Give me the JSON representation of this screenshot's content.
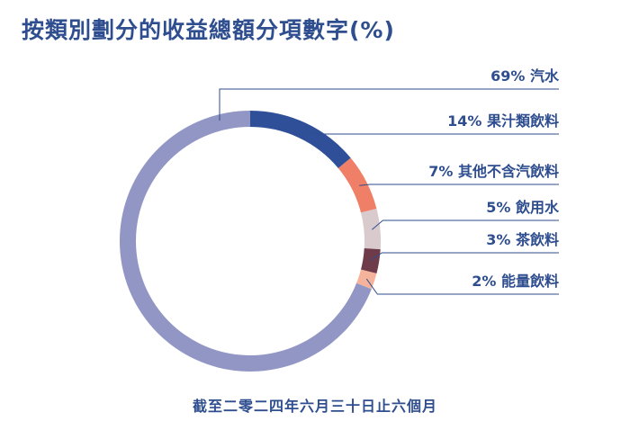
{
  "header": {
    "title": "按類別劃分的收益總額分項數字(%)"
  },
  "footer": {
    "period": "截至二零二四年六月三十日止六個月"
  },
  "chart_data": {
    "type": "pie",
    "donut": true,
    "title": "按類別劃分的收益總額分項數字(%)",
    "subtitle": "截至二零二四年六月三十日止六個月",
    "slices": [
      {
        "label": "汽水",
        "value": 69,
        "value_text": "69%",
        "color": "#9196c5"
      },
      {
        "label": "果汁類飲料",
        "value": 14,
        "value_text": "14%",
        "color": "#2f5098"
      },
      {
        "label": "其他不含汽飲料",
        "value": 7,
        "value_text": "7%",
        "color": "#f07f67"
      },
      {
        "label": "飲用水",
        "value": 5,
        "value_text": "5%",
        "color": "#d9cacd"
      },
      {
        "label": "茶飲料",
        "value": 3,
        "value_text": "3%",
        "color": "#6e3b4a"
      },
      {
        "label": "能量飲料",
        "value": 2,
        "value_text": "2%",
        "color": "#f6b39b"
      }
    ],
    "order": [
      "果汁類飲料",
      "其他不含汽飲料",
      "飲用水",
      "茶飲料",
      "能量飲料",
      "汽水"
    ],
    "legend_placement": "right",
    "line_color": "#2f4e8f"
  }
}
